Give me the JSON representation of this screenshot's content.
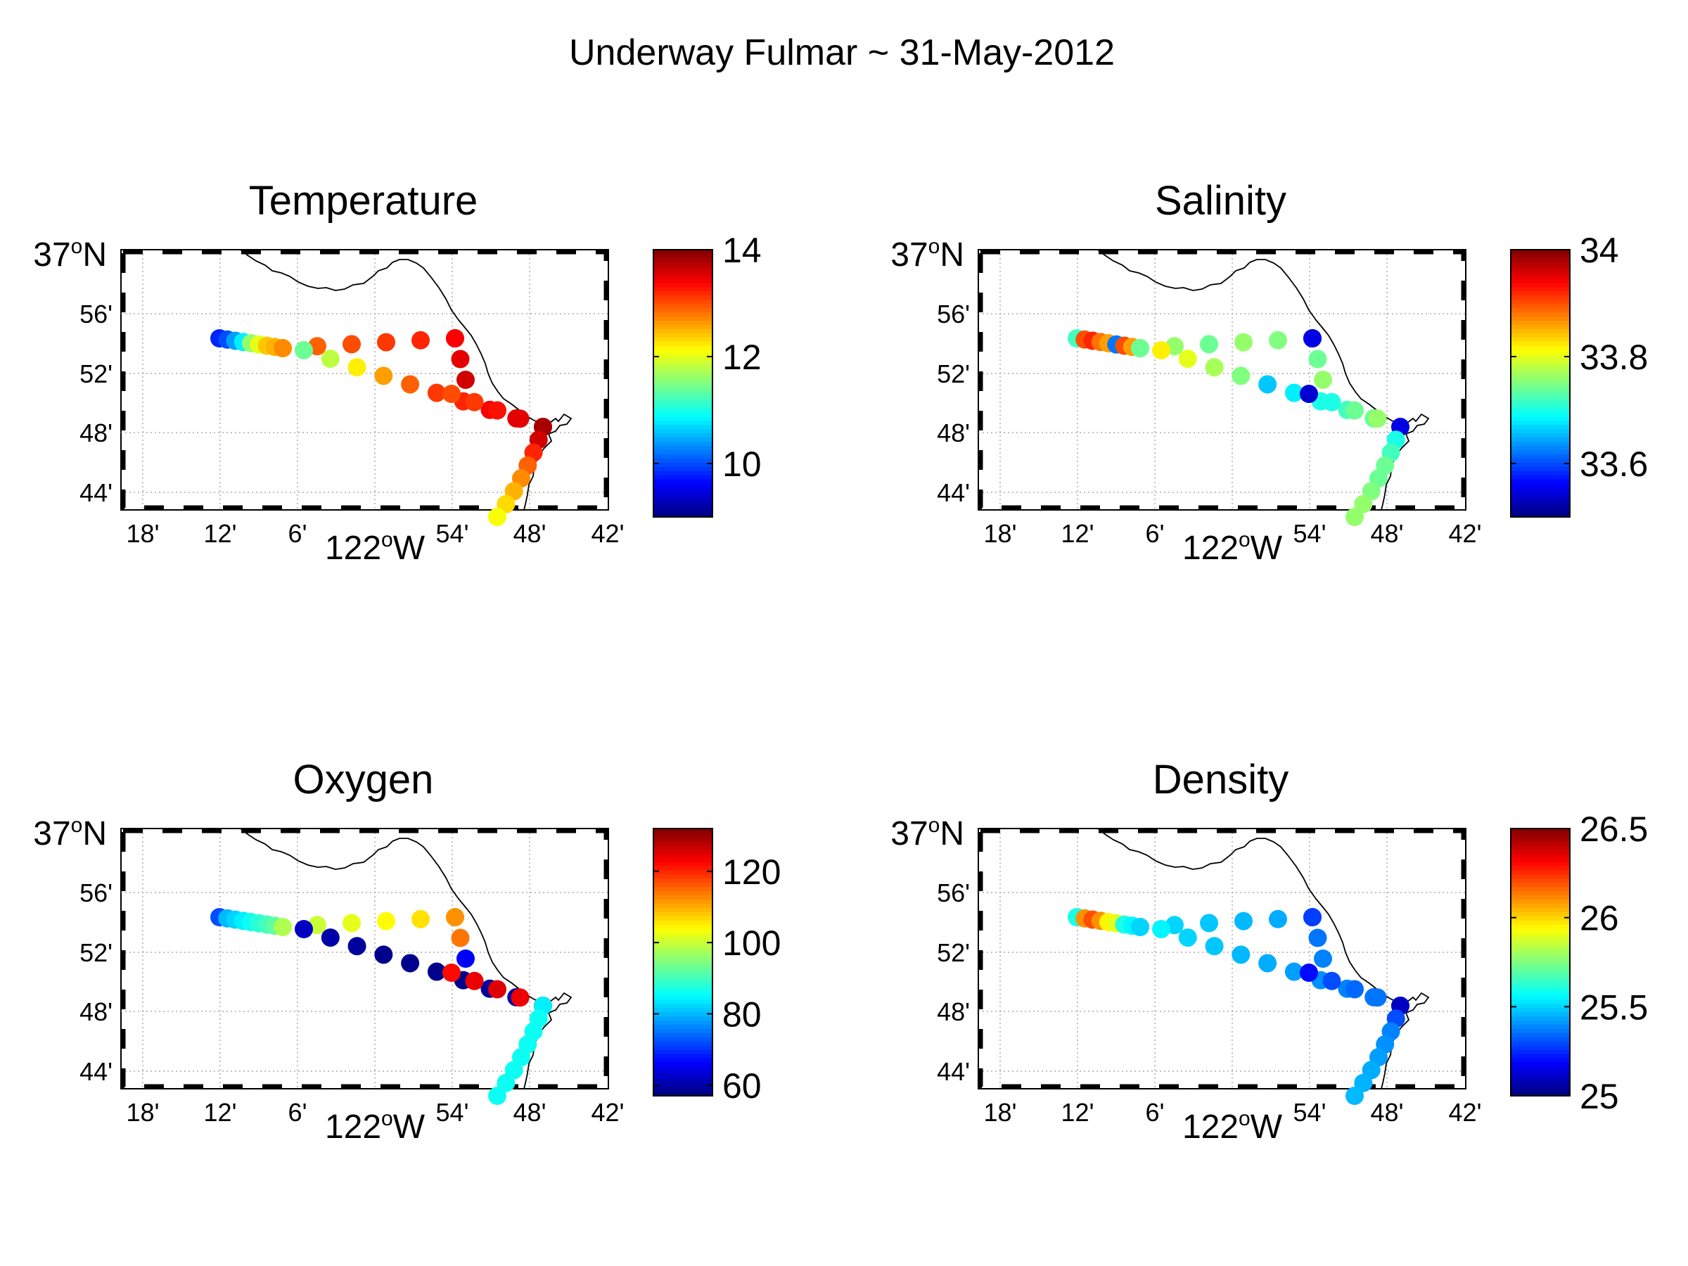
{
  "figure": {
    "title": "Underway Fulmar ~ 31-May-2012"
  },
  "axes": {
    "lat_ticks": [
      "56'",
      "52'",
      "48'",
      "44'"
    ],
    "lat_top_label": "37",
    "lat_top_suffix": "N",
    "lon_ticks": [
      "18'",
      "12'",
      "6'",
      "54'",
      "48'",
      "42'"
    ],
    "lon_center_label": "122",
    "lon_center_suffix": "W",
    "degree_mark": "o"
  },
  "panels": [
    {
      "id": "temperature",
      "title": "Temperature",
      "colorbar": {
        "min": 9,
        "max": 14,
        "ticks": [
          "14",
          "12",
          "10"
        ],
        "tick_values": [
          14,
          12,
          10
        ]
      },
      "track": [
        {
          "seg": "a",
          "values": [
            9.8,
            10.0,
            10.4,
            10.8,
            11.6,
            12.0,
            12.4,
            12.5,
            12.6
          ]
        },
        {
          "seg": "b",
          "values": [
            12.7,
            12.9,
            13.0,
            13.1,
            13.2,
            13.3
          ]
        },
        {
          "seg": "c",
          "values": [
            13.4,
            13.5,
            13.6
          ]
        },
        {
          "seg": "d",
          "values": [
            11.4,
            11.8,
            12.2,
            12.6,
            12.9,
            13.1,
            13.2,
            13.4,
            13.5,
            13.7
          ]
        },
        {
          "seg": "e",
          "values": [
            13.0,
            13.1,
            13.3,
            13.5,
            13.6
          ]
        },
        {
          "seg": "f",
          "values": [
            13.8,
            13.6,
            13.2,
            12.9,
            12.7,
            12.5,
            12.3,
            12.1
          ]
        }
      ]
    },
    {
      "id": "salinity",
      "title": "Salinity",
      "colorbar": {
        "min": 33.5,
        "max": 34.0,
        "ticks": [
          "34",
          "33.8",
          "33.6"
        ],
        "tick_values": [
          34.0,
          33.8,
          33.6
        ]
      },
      "track": [
        {
          "seg": "a",
          "values": [
            33.72,
            33.9,
            33.92,
            33.88,
            33.86,
            33.62,
            33.9,
            33.86,
            33.82
          ]
        },
        {
          "seg": "b",
          "values": [
            33.74,
            33.76,
            33.74,
            33.76,
            33.75,
            33.56
          ]
        },
        {
          "seg": "c",
          "values": [
            33.55,
            33.74,
            33.76
          ]
        },
        {
          "seg": "d",
          "values": [
            33.82,
            33.8,
            33.77,
            33.75,
            33.66,
            33.68,
            33.7,
            33.72,
            33.74,
            33.76
          ]
        },
        {
          "seg": "e",
          "values": [
            33.54,
            33.7,
            33.74,
            33.76,
            33.78
          ]
        },
        {
          "seg": "f",
          "values": [
            33.55,
            33.7,
            33.72,
            33.74,
            33.74,
            33.75,
            33.76,
            33.76
          ]
        }
      ]
    },
    {
      "id": "oxygen",
      "title": "Oxygen",
      "colorbar": {
        "min": 57,
        "max": 132,
        "ticks": [
          "120",
          "100",
          "80",
          "60"
        ],
        "tick_values": [
          120,
          100,
          80,
          60
        ]
      },
      "track": [
        {
          "seg": "a",
          "values": [
            72,
            80,
            82,
            84,
            86,
            88,
            90,
            92,
            96
          ]
        },
        {
          "seg": "b",
          "values": [
            98,
            100,
            102,
            104,
            106,
            110
          ]
        },
        {
          "seg": "c",
          "values": [
            112,
            114,
            66
          ]
        },
        {
          "seg": "d",
          "values": [
            62,
            60,
            59,
            58,
            58,
            58,
            58,
            59,
            60,
            62
          ]
        },
        {
          "seg": "e",
          "values": [
            122,
            124,
            125,
            124,
            122
          ]
        },
        {
          "seg": "f",
          "values": [
            84,
            86,
            86,
            86,
            86,
            86,
            86,
            86
          ]
        }
      ]
    },
    {
      "id": "density",
      "title": "Density",
      "colorbar": {
        "min": 25.0,
        "max": 26.5,
        "ticks": [
          "26.5",
          "26",
          "25.5",
          "25"
        ],
        "tick_values": [
          26.5,
          26.0,
          25.5,
          25.0
        ]
      },
      "track": [
        {
          "seg": "a",
          "values": [
            25.6,
            26.1,
            26.2,
            26.1,
            25.95,
            25.9,
            25.6,
            25.55,
            25.55
          ]
        },
        {
          "seg": "b",
          "values": [
            25.5,
            25.5,
            25.48,
            25.46,
            25.44,
            25.3
          ]
        },
        {
          "seg": "c",
          "values": [
            25.28,
            25.36,
            25.38
          ]
        },
        {
          "seg": "d",
          "values": [
            25.55,
            25.5,
            25.48,
            25.46,
            25.44,
            25.42,
            25.4,
            25.38,
            25.36,
            25.35
          ]
        },
        {
          "seg": "e",
          "values": [
            25.2,
            25.3,
            25.34,
            25.36,
            25.38
          ]
        },
        {
          "seg": "f",
          "values": [
            25.1,
            25.3,
            25.38,
            25.4,
            25.42,
            25.44,
            25.45,
            25.46
          ]
        }
      ]
    }
  ]
}
